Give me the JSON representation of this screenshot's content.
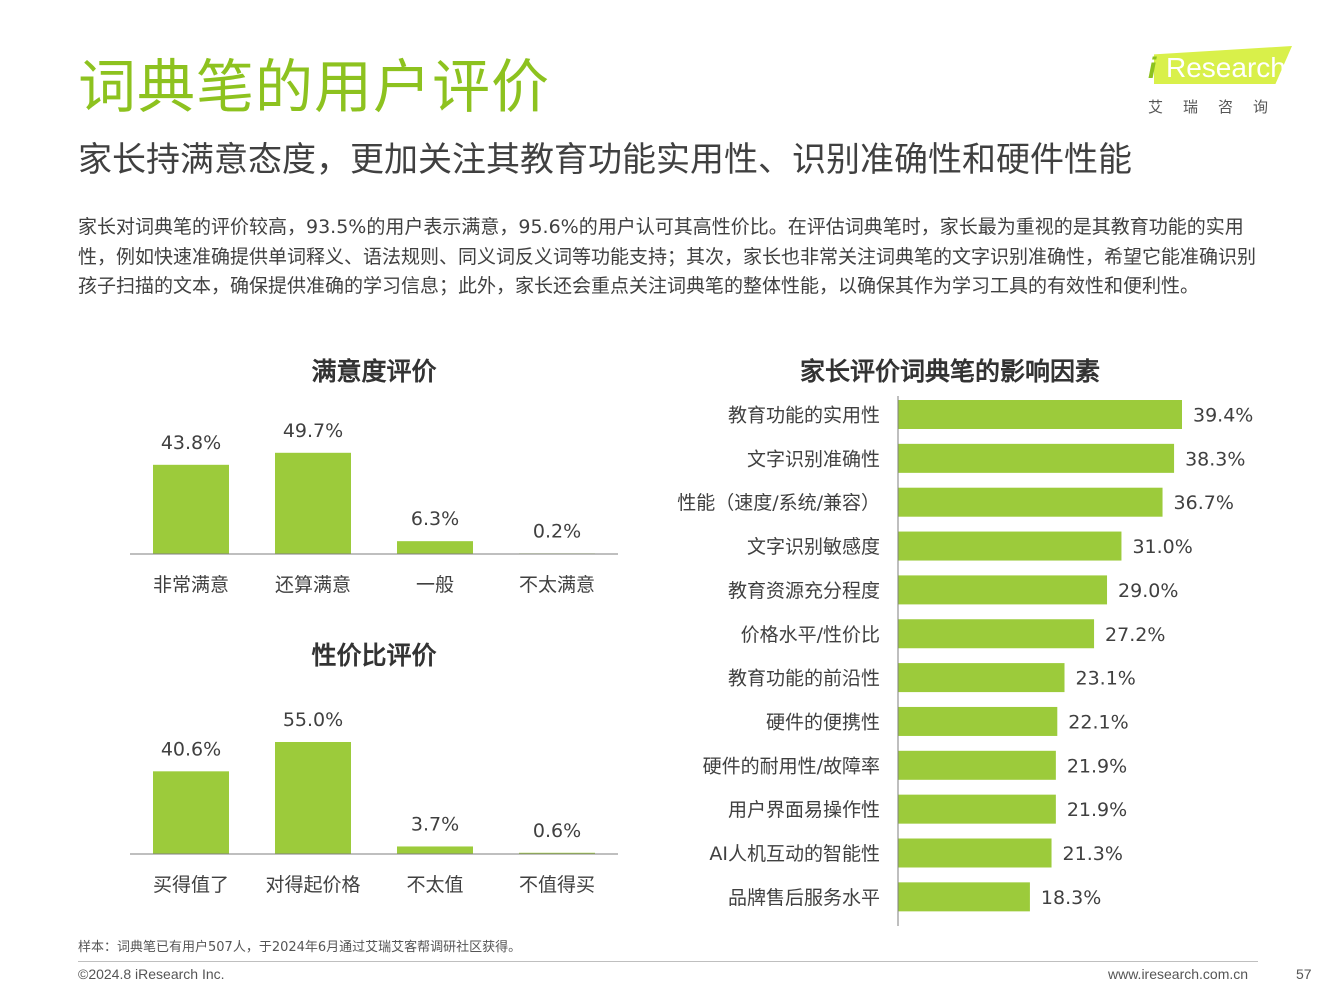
{
  "header": {
    "title": "词典笔的用户评价",
    "subtitle": "家长持满意态度，更加关注其教育功能实用性、识别准确性和硬件性能",
    "intro": "家长对词典笔的评价较高，93.5%的用户表示满意，95.6%的用户认可其高性价比。在评估词典笔时，家长最为重视的是其教育功能的实用性，例如快速准确提供单词释义、语法规则、同义词反义词等功能支持；其次，家长也非常关注词典笔的文字识别准确性，希望它能准确识别孩子扫描的文本，确保提供准确的学习信息；此外，家长还会重点关注词典笔的整体性能，以确保其作为学习工具的有效性和便利性。"
  },
  "logo": {
    "i": "i",
    "text": "Research",
    "cn": "艾瑞咨询"
  },
  "colors": {
    "accent": "#8dc21f",
    "bar": "#9ccb3b",
    "axis": "#7f7f7f"
  },
  "chart_data": [
    {
      "type": "bar",
      "title": "满意度评价",
      "categories": [
        "非常满意",
        "还算满意",
        "一般",
        "不太满意"
      ],
      "values": [
        43.8,
        49.7,
        6.3,
        0.2
      ],
      "labels": [
        "43.8%",
        "49.7%",
        "6.3%",
        "0.2%"
      ],
      "ylim": [
        0,
        55
      ]
    },
    {
      "type": "bar",
      "title": "性价比评价",
      "categories": [
        "买得值了",
        "对得起价格",
        "不太值",
        "不值得买"
      ],
      "values": [
        40.6,
        55.0,
        3.7,
        0.6
      ],
      "labels": [
        "40.6%",
        "55.0%",
        "3.7%",
        "0.6%"
      ],
      "ylim": [
        0,
        55
      ]
    },
    {
      "type": "bar",
      "orientation": "horizontal",
      "title": "家长评价词典笔的影响因素",
      "categories": [
        "教育功能的实用性",
        "文字识别准确性",
        "性能（速度/系统/兼容）",
        "文字识别敏感度",
        "教育资源充分程度",
        "价格水平/性价比",
        "教育功能的前沿性",
        "硬件的便携性",
        "硬件的耐用性/故障率",
        "用户界面易操作性",
        "AI人机互动的智能性",
        "品牌售后服务水平"
      ],
      "values": [
        39.4,
        38.3,
        36.7,
        31.0,
        29.0,
        27.2,
        23.1,
        22.1,
        21.9,
        21.9,
        21.3,
        18.3
      ],
      "labels": [
        "39.4%",
        "38.3%",
        "36.7%",
        "31.0%",
        "29.0%",
        "27.2%",
        "23.1%",
        "22.1%",
        "21.9%",
        "21.9%",
        "21.3%",
        "18.3%"
      ],
      "xlim": [
        0,
        39.4
      ]
    }
  ],
  "footer": {
    "sample_note": "样本：词典笔已有用户507人，于2024年6月通过艾瑞艾客帮调研社区获得。",
    "copyright": "©2024.8 iResearch Inc.",
    "website": "www.iresearch.com.cn",
    "page": "57"
  }
}
